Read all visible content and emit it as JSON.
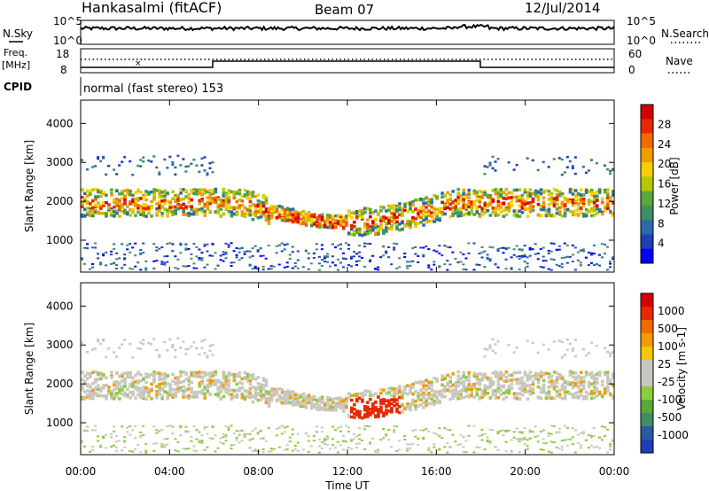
{
  "header": {
    "station": "Hankasalmi (fitACF)",
    "beam": "Beam 07",
    "date": "12/Jul/2014"
  },
  "panels": {
    "nsky": {
      "label": "N.Sky",
      "ticks": [
        "10^5",
        "10^0"
      ],
      "right_label": "N.Search",
      "right_ticks": [
        "10^5",
        "10^0"
      ]
    },
    "freq": {
      "label_line1": "Freq.",
      "label_line2": "[MHz]",
      "ticks": [
        "18",
        "8"
      ],
      "right_label": "Nave",
      "right_ticks": [
        "60",
        "0"
      ]
    },
    "cpid": {
      "label": "CPID",
      "text": "normal (fast stereo) 153"
    }
  },
  "chart_data": [
    {
      "type": "heatmap",
      "name": "Power",
      "ylabel": "Slant Range [km]",
      "ytick_labels": [
        "4000",
        "3000",
        "2000",
        "1000"
      ],
      "colorbar": {
        "label": "Power [dB]",
        "tick_labels": [
          "28",
          "24",
          "20",
          "16",
          "12",
          "8",
          "4"
        ],
        "colors": [
          "#0000ff",
          "#1f3fb4",
          "#2a6aa8",
          "#3f8f64",
          "#5aa83a",
          "#b4c800",
          "#f5d000",
          "#f59a00",
          "#f06a00",
          "#e82800",
          "#d40000"
        ]
      },
      "xlim": [
        "00:00",
        "24:00"
      ],
      "ylim": [
        180,
        4600
      ]
    },
    {
      "type": "heatmap",
      "name": "Velocity",
      "ylabel": "Slant Range [km]",
      "ytick_labels": [
        "4000",
        "3000",
        "2000",
        "1000"
      ],
      "colorbar": {
        "label": "Velocity [m s-1]",
        "tick_labels": [
          "1000",
          "500",
          "100",
          "25",
          "-25",
          "-100",
          "-500",
          "-1000"
        ],
        "colors": [
          "#1f3fb4",
          "#2a5aa0",
          "#3f8f64",
          "#5aa83a",
          "#8ccc40",
          "#c8c8c0",
          "#c8c8c0",
          "#f5c800",
          "#f59a00",
          "#f06a00",
          "#e82800",
          "#d40000"
        ]
      },
      "xlim": [
        "00:00",
        "24:00"
      ],
      "ylim": [
        180,
        4600
      ]
    }
  ],
  "xaxis": {
    "label": "Time UT",
    "tick_labels": [
      "00:00",
      "04:00",
      "08:00",
      "12:00",
      "16:00",
      "20:00",
      "00:00"
    ]
  }
}
